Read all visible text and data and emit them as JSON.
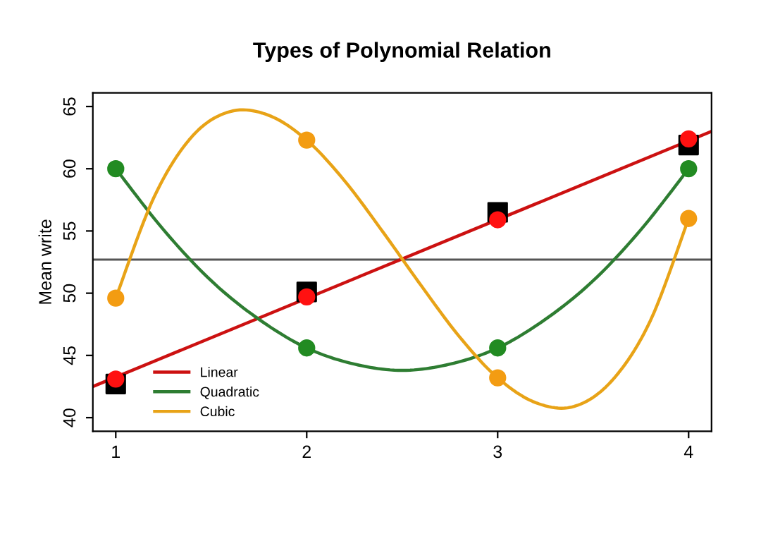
{
  "chart_data": {
    "type": "line",
    "title": "Types of Polynomial Relation",
    "ylabel": "Mean write",
    "xlim": [
      0.88,
      4.12
    ],
    "xticks": [
      1,
      2,
      3,
      4
    ],
    "ylim": [
      38.9,
      66.1
    ],
    "yticks": [
      40,
      45,
      50,
      55,
      60,
      65
    ],
    "grid": false,
    "legend": "bottom left",
    "ref_lines": [
      {
        "axis": "y",
        "value": 52.7,
        "color": "#555555",
        "line_style": "solid"
      }
    ],
    "series": [
      {
        "type": "scatter",
        "marker": "square",
        "color": "#000000",
        "x": [
          1,
          2,
          3,
          4
        ],
        "values": [
          42.7,
          50.1,
          56.5,
          61.9
        ]
      },
      {
        "name": "Linear",
        "color": "#cc1111",
        "marker": "none",
        "x": [
          0.88,
          4.12
        ],
        "values": [
          42.5,
          63.0
        ]
      },
      {
        "name": "Quadratic",
        "color": "#2e7d32",
        "marker": "none",
        "x": [
          1,
          1.25,
          1.5,
          1.75,
          2,
          2.25,
          2.5,
          2.75,
          3,
          3.25,
          3.5,
          3.75,
          4
        ],
        "values": [
          60,
          55.1,
          51.0,
          47.9,
          45.6,
          44.3,
          43.8,
          44.3,
          45.6,
          47.9,
          51.0,
          55.1,
          60
        ]
      },
      {
        "name": "Cubic",
        "color": "#e8a317",
        "marker": "none",
        "x": [
          1,
          1.2,
          1.4,
          1.6,
          1.8,
          2,
          2.2,
          2.4,
          2.6,
          2.8,
          3,
          3.2,
          3.4,
          3.6,
          3.8,
          4
        ],
        "values": [
          49.6,
          57.7,
          62.6,
          64.6,
          64.3,
          62.3,
          59.0,
          54.9,
          50.6,
          46.5,
          43.2,
          41.2,
          40.9,
          43.0,
          47.8,
          56.0
        ]
      },
      {
        "type": "scatter",
        "marker": "circle",
        "color": "#ff1111",
        "x": [
          1,
          2,
          3,
          4
        ],
        "values": [
          43.1,
          49.7,
          55.9,
          62.4
        ]
      },
      {
        "type": "scatter",
        "marker": "circle",
        "color": "#228b22",
        "x": [
          1,
          2,
          3,
          4
        ],
        "values": [
          60,
          45.6,
          45.6,
          60
        ]
      },
      {
        "type": "scatter",
        "marker": "circle",
        "color": "#f39c12",
        "x": [
          1,
          2,
          3,
          4
        ],
        "values": [
          49.6,
          62.3,
          43.2,
          56.0
        ]
      }
    ]
  }
}
